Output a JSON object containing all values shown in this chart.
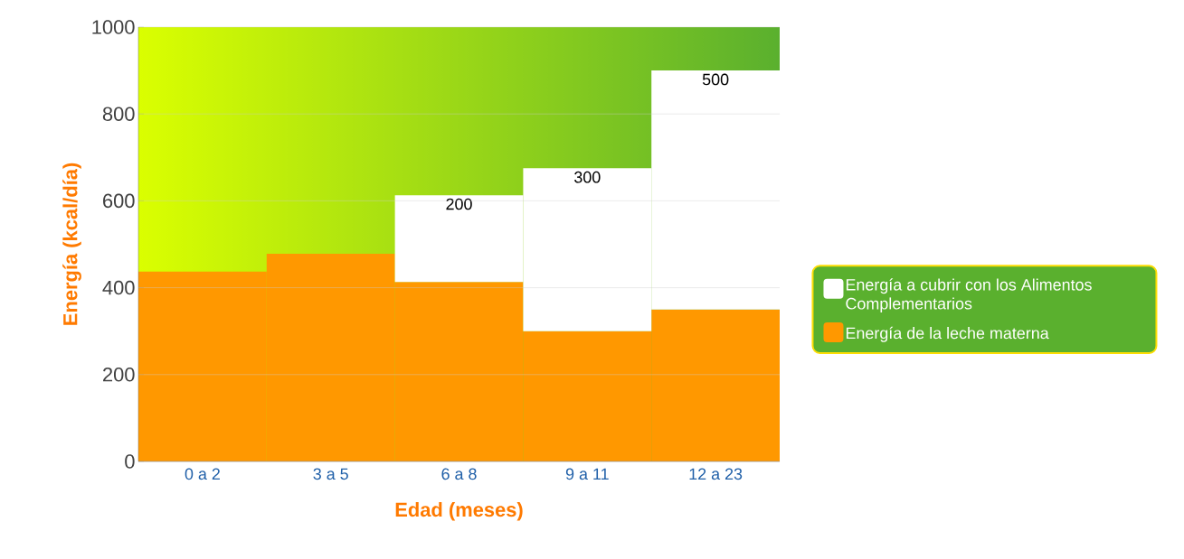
{
  "chart_data": {
    "type": "bar",
    "stacked": true,
    "ylabel": "Energía (kcal/día)",
    "xlabel": "Edad (meses)",
    "categories": [
      "0 a 2",
      "3 a 5",
      "6 a 8",
      "9 a 11",
      "12 a 23"
    ],
    "series": [
      {
        "name": "Energía de la leche materna",
        "color": "#ff9800",
        "values": [
          437,
          478,
          413,
          300,
          350
        ]
      },
      {
        "name": "Energía a cubrir con los Alimentos Complementarios",
        "color": "#ffffff",
        "values": [
          null,
          null,
          200,
          375,
          550
        ]
      }
    ],
    "annotations": [
      "200",
      "300",
      "500"
    ],
    "ylim": [
      0,
      1000
    ],
    "yticks": [
      0,
      200,
      400,
      600,
      800,
      1000
    ],
    "grid": "y",
    "legend": "right"
  }
}
